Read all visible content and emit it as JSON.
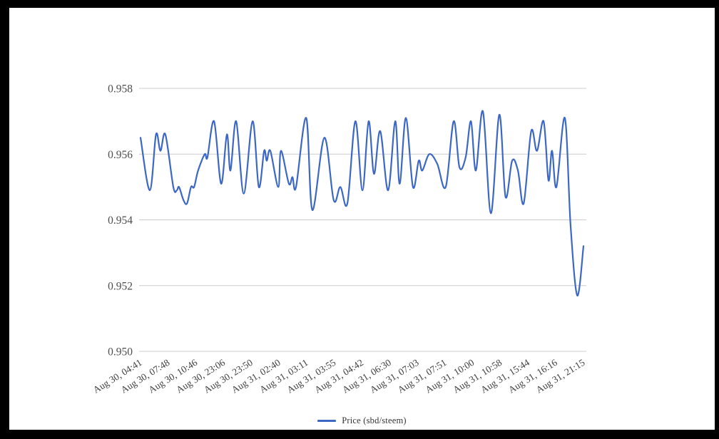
{
  "colors": {
    "frame_border": "#000000",
    "background": "#ffffff",
    "gridline": "#cccccc",
    "y_axis_label": "#4d4d4d",
    "x_axis_label": "#3f3f3f",
    "legend_text": "#333333",
    "series_line": "#3c67c5"
  },
  "legend": {
    "label": "Price (sbd/steem)"
  },
  "chart_data": {
    "type": "line",
    "title": "",
    "xlabel": "",
    "ylabel": "",
    "grid": true,
    "legend_position": "bottom-center",
    "ylim": [
      0.95,
      0.958
    ],
    "y_tick_values": [
      0.958,
      0.956,
      0.954,
      0.952,
      0.95
    ],
    "y_tick_labels": [
      "0.958",
      "0.956",
      "0.954",
      "0.952",
      "0.950"
    ],
    "x_tick_labels": [
      "Aug 30, 04:41",
      "Aug 30, 07:48",
      "Aug 30, 10:46",
      "Aug 30, 23:06",
      "Aug 30, 23:50",
      "Aug 31, 02:40",
      "Aug 31, 03:11",
      "Aug 31, 03:55",
      "Aug 31, 04:42",
      "Aug 31, 06:30",
      "Aug 31, 07:03",
      "Aug 31, 07:51",
      "Aug 31, 10:00",
      "Aug 31, 10:58",
      "Aug 31, 15:44",
      "Aug 31, 16:16",
      "Aug 31, 21:15"
    ],
    "series": [
      {
        "name": "Price (sbd/steem)",
        "color": "#3c67c5",
        "points": [
          [
            0.0,
            0.9565
          ],
          [
            0.021,
            0.9549
          ],
          [
            0.035,
            0.9566
          ],
          [
            0.045,
            0.9561
          ],
          [
            0.056,
            0.9566
          ],
          [
            0.074,
            0.955
          ],
          [
            0.082,
            0.9549
          ],
          [
            0.087,
            0.955
          ],
          [
            0.097,
            0.9546
          ],
          [
            0.105,
            0.9545
          ],
          [
            0.114,
            0.955
          ],
          [
            0.121,
            0.955
          ],
          [
            0.13,
            0.9555
          ],
          [
            0.145,
            0.956
          ],
          [
            0.151,
            0.9559
          ],
          [
            0.166,
            0.957
          ],
          [
            0.182,
            0.9551
          ],
          [
            0.195,
            0.9566
          ],
          [
            0.203,
            0.9555
          ],
          [
            0.216,
            0.957
          ],
          [
            0.233,
            0.9548
          ],
          [
            0.253,
            0.957
          ],
          [
            0.267,
            0.955
          ],
          [
            0.279,
            0.9561
          ],
          [
            0.285,
            0.9558
          ],
          [
            0.293,
            0.9561
          ],
          [
            0.311,
            0.955
          ],
          [
            0.317,
            0.9561
          ],
          [
            0.335,
            0.9551
          ],
          [
            0.343,
            0.9553
          ],
          [
            0.351,
            0.955
          ],
          [
            0.374,
            0.9571
          ],
          [
            0.388,
            0.9543
          ],
          [
            0.415,
            0.9565
          ],
          [
            0.436,
            0.9546
          ],
          [
            0.451,
            0.955
          ],
          [
            0.467,
            0.9545
          ],
          [
            0.485,
            0.957
          ],
          [
            0.501,
            0.9549
          ],
          [
            0.515,
            0.957
          ],
          [
            0.527,
            0.9554
          ],
          [
            0.541,
            0.9567
          ],
          [
            0.559,
            0.9549
          ],
          [
            0.575,
            0.957
          ],
          [
            0.585,
            0.9551
          ],
          [
            0.599,
            0.9571
          ],
          [
            0.615,
            0.955
          ],
          [
            0.628,
            0.9558
          ],
          [
            0.636,
            0.9555
          ],
          [
            0.652,
            0.956
          ],
          [
            0.67,
            0.9557
          ],
          [
            0.689,
            0.955
          ],
          [
            0.707,
            0.957
          ],
          [
            0.72,
            0.9556
          ],
          [
            0.734,
            0.9559
          ],
          [
            0.746,
            0.957
          ],
          [
            0.757,
            0.9555
          ],
          [
            0.773,
            0.9573
          ],
          [
            0.791,
            0.9542
          ],
          [
            0.81,
            0.9572
          ],
          [
            0.824,
            0.9547
          ],
          [
            0.839,
            0.9558
          ],
          [
            0.852,
            0.9555
          ],
          [
            0.865,
            0.9545
          ],
          [
            0.882,
            0.9567
          ],
          [
            0.895,
            0.9561
          ],
          [
            0.91,
            0.957
          ],
          [
            0.921,
            0.9552
          ],
          [
            0.929,
            0.9561
          ],
          [
            0.939,
            0.955
          ],
          [
            0.958,
            0.9571
          ],
          [
            0.971,
            0.9538
          ],
          [
            0.986,
            0.9517
          ],
          [
            1.0,
            0.9532
          ]
        ]
      }
    ]
  }
}
